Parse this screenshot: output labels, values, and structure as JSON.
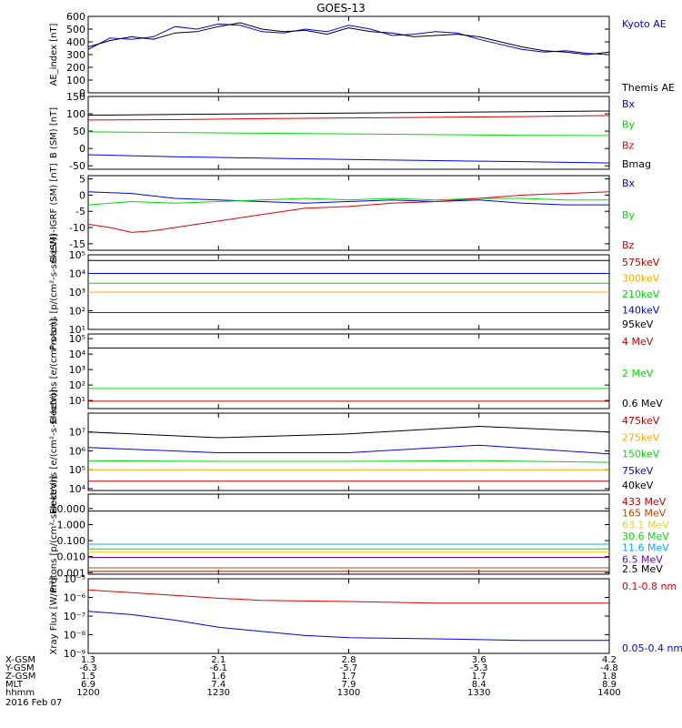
{
  "title": "GOES-13",
  "colors": {
    "black": "#000000",
    "blue": "#0000ee",
    "green": "#00dd00",
    "red": "#dd0000",
    "orange": "#ffaa00",
    "cyan": "#00aaff",
    "purple": "#7700aa",
    "yellow": "#dddd00",
    "darkred": "#bb0000",
    "brown": "#bb4400"
  },
  "chart_data": [
    {
      "type": "line",
      "ylabel": "AE_index [nT]",
      "ylim": [
        0,
        600
      ],
      "yticks": [
        "0",
        "100",
        "200",
        "300",
        "400",
        "500",
        "600"
      ],
      "series": [
        {
          "name": "Kyoto AE",
          "color": "blue",
          "x": [
            1200,
            1205,
            1210,
            1215,
            1220,
            1225,
            1230,
            1235,
            1240,
            1245,
            1250,
            1255,
            1300,
            1305,
            1310,
            1315,
            1320,
            1325,
            1330,
            1335,
            1340,
            1345,
            1350,
            1355,
            1400
          ],
          "y": [
            340,
            430,
            420,
            440,
            520,
            500,
            540,
            530,
            480,
            470,
            500,
            480,
            530,
            500,
            450,
            460,
            480,
            470,
            420,
            380,
            340,
            320,
            330,
            310,
            300
          ]
        },
        {
          "name": "Themis AE",
          "color": "black",
          "x": [
            1200,
            1205,
            1210,
            1215,
            1220,
            1225,
            1230,
            1235,
            1240,
            1245,
            1250,
            1255,
            1300,
            1305,
            1310,
            1315,
            1320,
            1325,
            1330,
            1335,
            1340,
            1345,
            1350,
            1355,
            1400
          ],
          "y": [
            360,
            410,
            440,
            420,
            470,
            480,
            520,
            550,
            500,
            480,
            490,
            460,
            510,
            480,
            470,
            440,
            450,
            460,
            440,
            400,
            360,
            330,
            320,
            300,
            320
          ]
        }
      ]
    },
    {
      "type": "line",
      "ylabel": "B (SM) [nT]",
      "ylim": [
        -60,
        150
      ],
      "yticks": [
        "-50",
        "0",
        "50",
        "100",
        "150"
      ],
      "series": [
        {
          "name": "Bx",
          "color": "blue",
          "x": [
            1200,
            1220,
            1240,
            1300,
            1320,
            1340,
            1400
          ],
          "y": [
            -18,
            -24,
            -28,
            -32,
            -35,
            -38,
            -42
          ]
        },
        {
          "name": "By",
          "color": "green",
          "x": [
            1200,
            1220,
            1240,
            1300,
            1320,
            1340,
            1400
          ],
          "y": [
            48,
            46,
            44,
            42,
            40,
            38,
            37
          ]
        },
        {
          "name": "Bz",
          "color": "red",
          "x": [
            1200,
            1220,
            1240,
            1300,
            1320,
            1340,
            1400
          ],
          "y": [
            82,
            83,
            86,
            88,
            90,
            92,
            95
          ]
        },
        {
          "name": "Bmag",
          "color": "black",
          "x": [
            1200,
            1220,
            1240,
            1300,
            1320,
            1340,
            1400
          ],
          "y": [
            96,
            98,
            100,
            102,
            104,
            106,
            108
          ]
        }
      ]
    },
    {
      "type": "line",
      "ylabel": "B (SM)-IGRF (SM) [nT]",
      "ylim": [
        -17,
        6
      ],
      "yticks": [
        "-15",
        "-10",
        "-5",
        "0",
        "5"
      ],
      "series": [
        {
          "name": "Bx",
          "color": "blue",
          "x": [
            1200,
            1210,
            1220,
            1230,
            1240,
            1250,
            1300,
            1310,
            1320,
            1330,
            1340,
            1350,
            1400
          ],
          "y": [
            1,
            0.5,
            -1,
            -1.5,
            -2,
            -2.5,
            -2,
            -1.5,
            -2,
            -1.5,
            -2.5,
            -3,
            -3
          ]
        },
        {
          "name": "By",
          "color": "green",
          "x": [
            1200,
            1210,
            1220,
            1230,
            1240,
            1250,
            1300,
            1310,
            1320,
            1330,
            1340,
            1350,
            1400
          ],
          "y": [
            -3,
            -2,
            -2.5,
            -2,
            -1.5,
            -1,
            -1.5,
            -1,
            -1.5,
            -1,
            -1,
            -1.5,
            -1.5
          ]
        },
        {
          "name": "Bz",
          "color": "red",
          "x": [
            1200,
            1205,
            1210,
            1215,
            1220,
            1230,
            1240,
            1250,
            1300,
            1310,
            1320,
            1330,
            1340,
            1350,
            1400
          ],
          "y": [
            -9,
            -10,
            -11.5,
            -11,
            -10,
            -8,
            -6,
            -4,
            -3.5,
            -2.5,
            -2,
            -1,
            0,
            0.5,
            1
          ]
        }
      ]
    },
    {
      "type": "line",
      "ylabel": "Protons [p/(cm²-s-sr-keV)]",
      "ylog": true,
      "ylim": [
        10,
        100000
      ],
      "yticks": [
        "10¹",
        "10²",
        "10³",
        "10⁴",
        "10⁵"
      ],
      "series": [
        {
          "name": "575keV",
          "color": "darkred",
          "x": [
            1200,
            1400
          ],
          "y": [
            80,
            80
          ]
        },
        {
          "name": "300keV",
          "color": "orange",
          "x": [
            1200,
            1400
          ],
          "y": [
            1000,
            1000
          ]
        },
        {
          "name": "210keV",
          "color": "green",
          "x": [
            1200,
            1400
          ],
          "y": [
            3000,
            3000
          ]
        },
        {
          "name": "140keV",
          "color": "blue",
          "x": [
            1200,
            1400
          ],
          "y": [
            10000,
            10000
          ]
        },
        {
          "name": "95keV",
          "color": "black",
          "x": [
            1200,
            1400
          ],
          "y": [
            50000,
            50000
          ]
        }
      ]
    },
    {
      "type": "line",
      "ylabel": "Electrons [e/(cm²-s-sr)]",
      "ylog": true,
      "ylim": [
        3,
        200000
      ],
      "yticks": [
        "10¹",
        "10²",
        "10³",
        "10⁴",
        "10⁵"
      ],
      "series": [
        {
          "name": "4 MeV",
          "color": "darkred",
          "x": [
            1200,
            1400
          ],
          "y": [
            9,
            9
          ]
        },
        {
          "name": "2 MeV",
          "color": "green",
          "x": [
            1200,
            1400
          ],
          "y": [
            60,
            60
          ]
        },
        {
          "name": "0.6 MeV",
          "color": "black",
          "x": [
            1200,
            1400
          ],
          "y": [
            25000,
            25000
          ]
        }
      ]
    },
    {
      "type": "line",
      "ylabel": "Electrons [e/(cm²-s-sr-keV)]",
      "ylog": true,
      "ylim": [
        8000,
        100000000
      ],
      "yticks": [
        "10⁴",
        "10⁵",
        "10⁶",
        "10⁷"
      ],
      "series": [
        {
          "name": "475keV",
          "color": "darkred",
          "x": [
            1200,
            1400
          ],
          "y": [
            25000,
            25000
          ]
        },
        {
          "name": "275keV",
          "color": "orange",
          "x": [
            1200,
            1400
          ],
          "y": [
            100000,
            100000
          ]
        },
        {
          "name": "150keV",
          "color": "green",
          "x": [
            1200,
            1230,
            1300,
            1330,
            1400
          ],
          "y": [
            300000,
            280000,
            280000,
            300000,
            250000
          ]
        },
        {
          "name": "75keV",
          "color": "blue",
          "x": [
            1200,
            1230,
            1300,
            1330,
            1400
          ],
          "y": [
            1500000,
            800000,
            800000,
            2000000,
            700000
          ]
        },
        {
          "name": "40keV",
          "color": "black",
          "x": [
            1200,
            1230,
            1300,
            1330,
            1400
          ],
          "y": [
            10000000,
            5000000,
            8000000,
            20000000,
            10000000
          ]
        }
      ]
    },
    {
      "type": "line",
      "ylabel": "Protons [p/(cm²-s-sr-keV)]",
      "ylog": true,
      "ylim": [
        0.0008,
        80
      ],
      "yticks": [
        "0.001",
        "0.010",
        "0.100",
        "1.000",
        "10.000"
      ],
      "series": [
        {
          "name": "433 MeV",
          "color": "darkred",
          "x": [
            1200,
            1400
          ],
          "y": [
            0.0012,
            0.0012
          ]
        },
        {
          "name": "165 MeV",
          "color": "brown",
          "x": [
            1200,
            1400
          ],
          "y": [
            0.002,
            0.002
          ]
        },
        {
          "name": "63.1 MeV",
          "color": "yellow",
          "x": [
            1200,
            1400
          ],
          "y": [
            0.02,
            0.02
          ]
        },
        {
          "name": "30.6 MeV",
          "color": "green",
          "x": [
            1200,
            1400
          ],
          "y": [
            0.03,
            0.03
          ]
        },
        {
          "name": "11.6 MeV",
          "color": "cyan",
          "x": [
            1200,
            1400
          ],
          "y": [
            0.06,
            0.06
          ]
        },
        {
          "name": "6.5 MeV",
          "color": "purple",
          "x": [
            1200,
            1400
          ],
          "y": [
            0.009,
            0.009
          ]
        },
        {
          "name": "2.5 MeV",
          "color": "black",
          "x": [
            1200,
            1400
          ],
          "y": [
            7,
            7
          ]
        }
      ]
    },
    {
      "type": "line",
      "ylabel": "Xray Flux [W/m²]",
      "ylog": true,
      "ylim": [
        1e-09,
        1e-05
      ],
      "yticks": [
        "10⁻⁹",
        "10⁻⁸",
        "10⁻⁷",
        "10⁻⁶",
        "10⁻⁵"
      ],
      "series": [
        {
          "name": "0.1-0.8 nm",
          "color": "red",
          "x": [
            1200,
            1210,
            1220,
            1230,
            1240,
            1300,
            1320,
            1340,
            1400
          ],
          "y": [
            2.5e-06,
            1.8e-06,
            1.3e-06,
            9e-07,
            7e-07,
            6e-07,
            5e-07,
            5e-07,
            5e-07
          ]
        },
        {
          "name": "0.05-0.4 nm",
          "color": "blue",
          "x": [
            1200,
            1210,
            1220,
            1230,
            1240,
            1250,
            1300,
            1320,
            1340,
            1400
          ],
          "y": [
            1.8e-07,
            1.2e-07,
            6e-08,
            2.5e-08,
            1.5e-08,
            9e-09,
            7e-09,
            6e-09,
            5e-09,
            5e-09
          ]
        }
      ]
    }
  ],
  "xaxis": {
    "rows": [
      {
        "label": "X-GSM",
        "values": [
          "1.3",
          "2.1",
          "2.8",
          "3.6",
          "4.2"
        ]
      },
      {
        "label": "Y-GSM",
        "values": [
          "-6.3",
          "-6.1",
          "-5.7",
          "-5.3",
          "-4.8"
        ]
      },
      {
        "label": "Z-GSM",
        "values": [
          "1.5",
          "1.6",
          "1.7",
          "1.7",
          "1.8"
        ]
      },
      {
        "label": "MLT",
        "values": [
          "6.9",
          "7.4",
          "7.9",
          "8.4",
          "8.9"
        ]
      },
      {
        "label": "hhmm",
        "values": [
          "1200",
          "1230",
          "1300",
          "1330",
          "1400"
        ]
      }
    ],
    "date": "2016 Feb 07"
  }
}
